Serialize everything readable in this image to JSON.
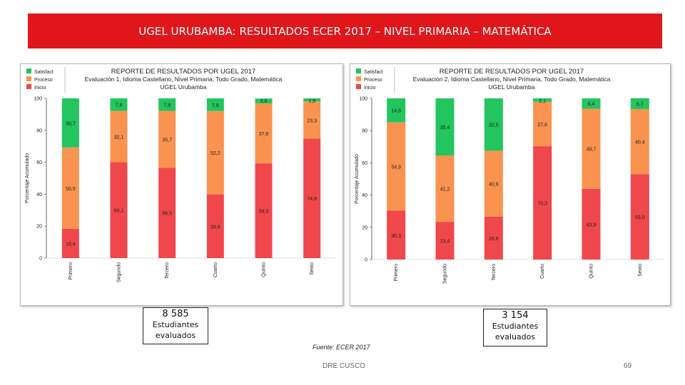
{
  "banner": {
    "title": "UGEL URUBAMBA: RESULTADOS ECER 2017 – NIVEL PRIMARIA – MATEMÁTICA"
  },
  "colors": {
    "satisfactorio": "#22c55e",
    "proceso": "#f9934f",
    "inicio": "#f0474c",
    "banner": "#e0161b"
  },
  "callouts": [
    {
      "number": "8 585",
      "label": "Estudiantes evaluados"
    },
    {
      "number": "3 154",
      "label": "Estudiantes evaluados"
    }
  ],
  "source": "Fuente: ECER 2017",
  "footer": "DRE CUSCO",
  "page_number": "69",
  "chart_data": [
    {
      "type": "bar",
      "stacked": true,
      "title": "REPORTE DE RESULTADOS POR UGEL 2017",
      "subtitle": [
        "Evaluación 1, Idioma Castellano, Nivel Primaria, Todo Grado, Matemática",
        "UGEL Urubamba"
      ],
      "ylabel": "Porcentaje Acumulado",
      "ylim": [
        0,
        100
      ],
      "yticks": [
        0,
        20,
        40,
        60,
        80,
        100
      ],
      "grid": false,
      "legend_position": "top-left",
      "categories": [
        "Primero",
        "Segundo",
        "Tercero",
        "Cuarto",
        "Quinto",
        "Sexto"
      ],
      "series": [
        {
          "name": "Inicio",
          "values": [
            18.4,
            60.1,
            56.5,
            39.9,
            59.3,
            74.8
          ]
        },
        {
          "name": "Proceso",
          "values": [
            50.9,
            32.1,
            35.7,
            52.2,
            37.6,
            23.3
          ]
        },
        {
          "name": "Satisfact",
          "values": [
            30.7,
            7.8,
            7.8,
            7.9,
            3.0,
            1.9
          ]
        }
      ],
      "data_labels": [
        [
          "18,4",
          "60,1",
          "56,5",
          "39,9",
          "59,3",
          "74,8"
        ],
        [
          "50,9",
          "32,1",
          "35,7",
          "52,2",
          "37,6",
          "23,3"
        ],
        [
          "30,7",
          "7,8",
          "7,8",
          "7,9",
          "3,0",
          "1,9"
        ]
      ]
    },
    {
      "type": "bar",
      "stacked": true,
      "title": "REPORTE DE RESULTADOS POR UGEL 2017",
      "subtitle": [
        "Evaluación 2, Idioma Castellano, Nivel Primaria, Todo Grado, Matemática",
        "UGEL Urubamba"
      ],
      "ylabel": "Porcentaje Acumulado",
      "ylim": [
        0,
        100
      ],
      "yticks": [
        0,
        20,
        40,
        60,
        80,
        100
      ],
      "grid": false,
      "legend_position": "top-left",
      "categories": [
        "Primero",
        "Segundo",
        "Tercero",
        "Cuarto",
        "Quinto",
        "Sexto"
      ],
      "series": [
        {
          "name": "Inicio",
          "values": [
            30.3,
            23.4,
            26.6,
            70.3,
            43.9,
            53.0
          ]
        },
        {
          "name": "Proceso",
          "values": [
            54.9,
            41.2,
            40.9,
            27.6,
            49.7,
            40.4
          ]
        },
        {
          "name": "Satisfact",
          "values": [
            14.8,
            35.4,
            32.5,
            2.1,
            6.4,
            6.7
          ]
        }
      ],
      "data_labels": [
        [
          "30,3",
          "23,4",
          "26,6",
          "70,3",
          "43,9",
          "53,0"
        ],
        [
          "54,9",
          "41,2",
          "40,9",
          "27,6",
          "49,7",
          "40,4"
        ],
        [
          "14,8",
          "35,4",
          "32,5",
          "2,1",
          "6,4",
          "6,7"
        ]
      ]
    }
  ]
}
